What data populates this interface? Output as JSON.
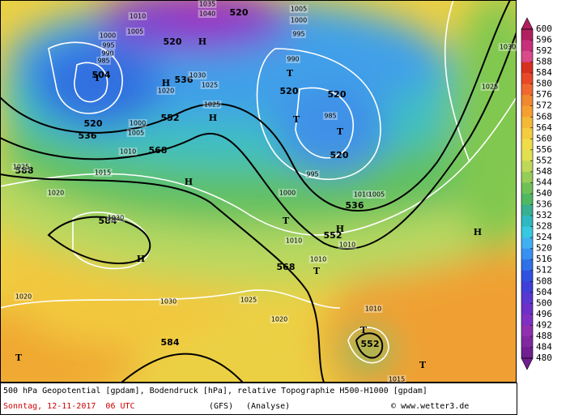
{
  "footer": {
    "line1": "500 hPa Geopotential [gpdam], Bodendruck [hPa], relative Topographie H500-H1000 [gpdam]",
    "date": "Sonntag, 12-11-2017  06 UTC",
    "model": "(GFS)",
    "run": "(Analyse)",
    "credit": "© www.wetter3.de"
  },
  "colorbar": {
    "labels": [
      600,
      596,
      592,
      588,
      584,
      580,
      576,
      572,
      568,
      564,
      560,
      556,
      552,
      548,
      544,
      540,
      536,
      532,
      528,
      524,
      520,
      516,
      512,
      508,
      504,
      500,
      496,
      492,
      488,
      484,
      480
    ],
    "colors": [
      "#b0205e",
      "#c8307a",
      "#d84a8a",
      "#d83020",
      "#e84828",
      "#f06830",
      "#f08830",
      "#f4a030",
      "#f4b838",
      "#f4cc40",
      "#f0dc48",
      "#e0e050",
      "#c0d858",
      "#98cc58",
      "#70c058",
      "#50b860",
      "#38b090",
      "#30b8c0",
      "#38c8e0",
      "#40b0f0",
      "#3890f0",
      "#3070e8",
      "#3050e0",
      "#4040d8",
      "#5838d0",
      "#6c30c8",
      "#8030c0",
      "#9030b0",
      "#8028a0",
      "#701e90"
    ]
  },
  "geopotential_labels": [
    "504",
    "520",
    "536",
    "552",
    "568",
    "588",
    "584",
    "584",
    "520",
    "520",
    "536",
    "520",
    "520",
    "520",
    "536",
    "552",
    "568",
    "552"
  ],
  "pressure_labels": [
    "1010",
    "1005",
    "1000",
    "995",
    "990",
    "985",
    "1040",
    "1035",
    "1005",
    "1000",
    "995",
    "990",
    "1030",
    "1025",
    "1020",
    "1025",
    "985",
    "1000",
    "1005",
    "1010",
    "1025",
    "1015",
    "1020",
    "995",
    "1000",
    "1010",
    "1005",
    "1010",
    "1010",
    "1010",
    "1030",
    "1020",
    "1030",
    "1025",
    "1020",
    "1010",
    "1015",
    "1025",
    "1030"
  ],
  "high_labels": [
    "H",
    "H",
    "H",
    "H",
    "H",
    "H",
    "H"
  ],
  "low_labels": [
    "T",
    "T",
    "T",
    "T",
    "T",
    "T",
    "T",
    "T",
    "T"
  ]
}
